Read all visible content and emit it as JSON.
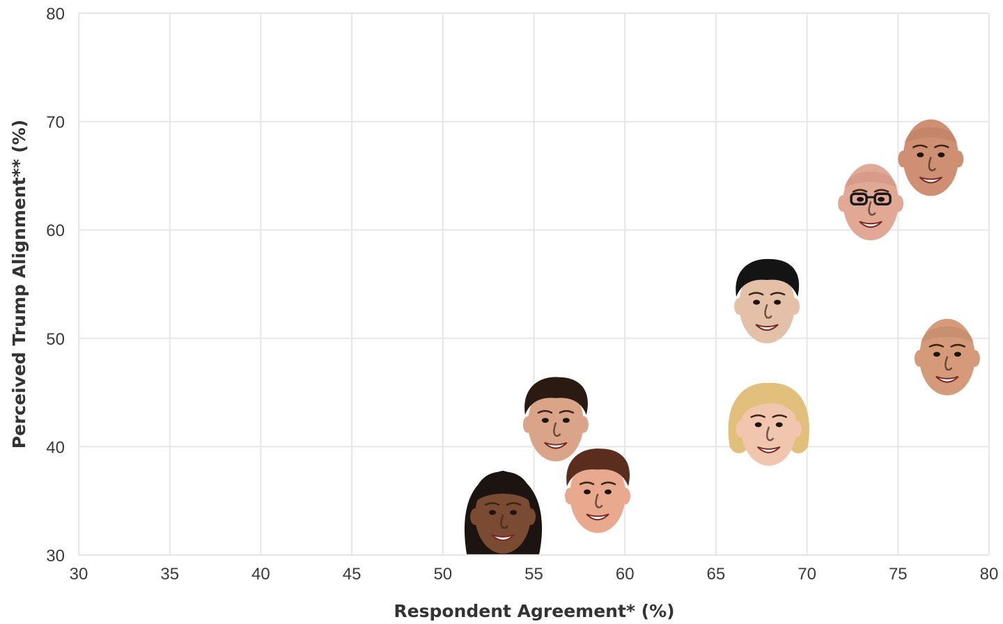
{
  "chart_data": {
    "type": "scatter",
    "title": "",
    "xlabel": "Respondent Agreement* (%)",
    "ylabel": "Perceived Trump Alignment** (%)",
    "xlim": [
      30,
      80
    ],
    "ylim": [
      30,
      80
    ],
    "x_ticks": [
      "30",
      "35",
      "40",
      "45",
      "50",
      "55",
      "60",
      "65",
      "70",
      "75",
      "80"
    ],
    "y_ticks": [
      "30",
      "40",
      "50",
      "60",
      "70",
      "80"
    ],
    "grid": true,
    "marker": "portrait photo of a commentator's face",
    "points": [
      {
        "x": 53.3,
        "y": 33.8,
        "marker": "face-woman-dark-hair",
        "skin": "#7a4a32",
        "hair": "#1b1410",
        "hair_style": "long"
      },
      {
        "x": 58.5,
        "y": 35.7,
        "marker": "face-man-brown-hair",
        "skin": "#e8a98f",
        "hair": "#5a2e1f",
        "hair_style": "short"
      },
      {
        "x": 56.2,
        "y": 42.3,
        "marker": "face-man-dark-hair",
        "skin": "#d9a488",
        "hair": "#2a1a12",
        "hair_style": "short"
      },
      {
        "x": 67.9,
        "y": 41.9,
        "marker": "face-woman-blonde-hair",
        "skin": "#f0c7ae",
        "hair": "#e0c07a",
        "hair_style": "bob"
      },
      {
        "x": 67.8,
        "y": 53.2,
        "marker": "face-man-black-hair",
        "skin": "#e5c0a8",
        "hair": "#141414",
        "hair_style": "short"
      },
      {
        "x": 73.5,
        "y": 62.7,
        "marker": "face-man-glasses",
        "skin": "#e2a896",
        "hair": "#c98c7a",
        "hair_style": "bald-glasses"
      },
      {
        "x": 76.8,
        "y": 66.8,
        "marker": "face-man-bald",
        "skin": "#cf8f72",
        "hair": "#b67a5e",
        "hair_style": "bald"
      },
      {
        "x": 77.7,
        "y": 48.4,
        "marker": "face-man-bald-smiling",
        "skin": "#d49a7a",
        "hair": "#b88466",
        "hair_style": "bald"
      }
    ]
  }
}
